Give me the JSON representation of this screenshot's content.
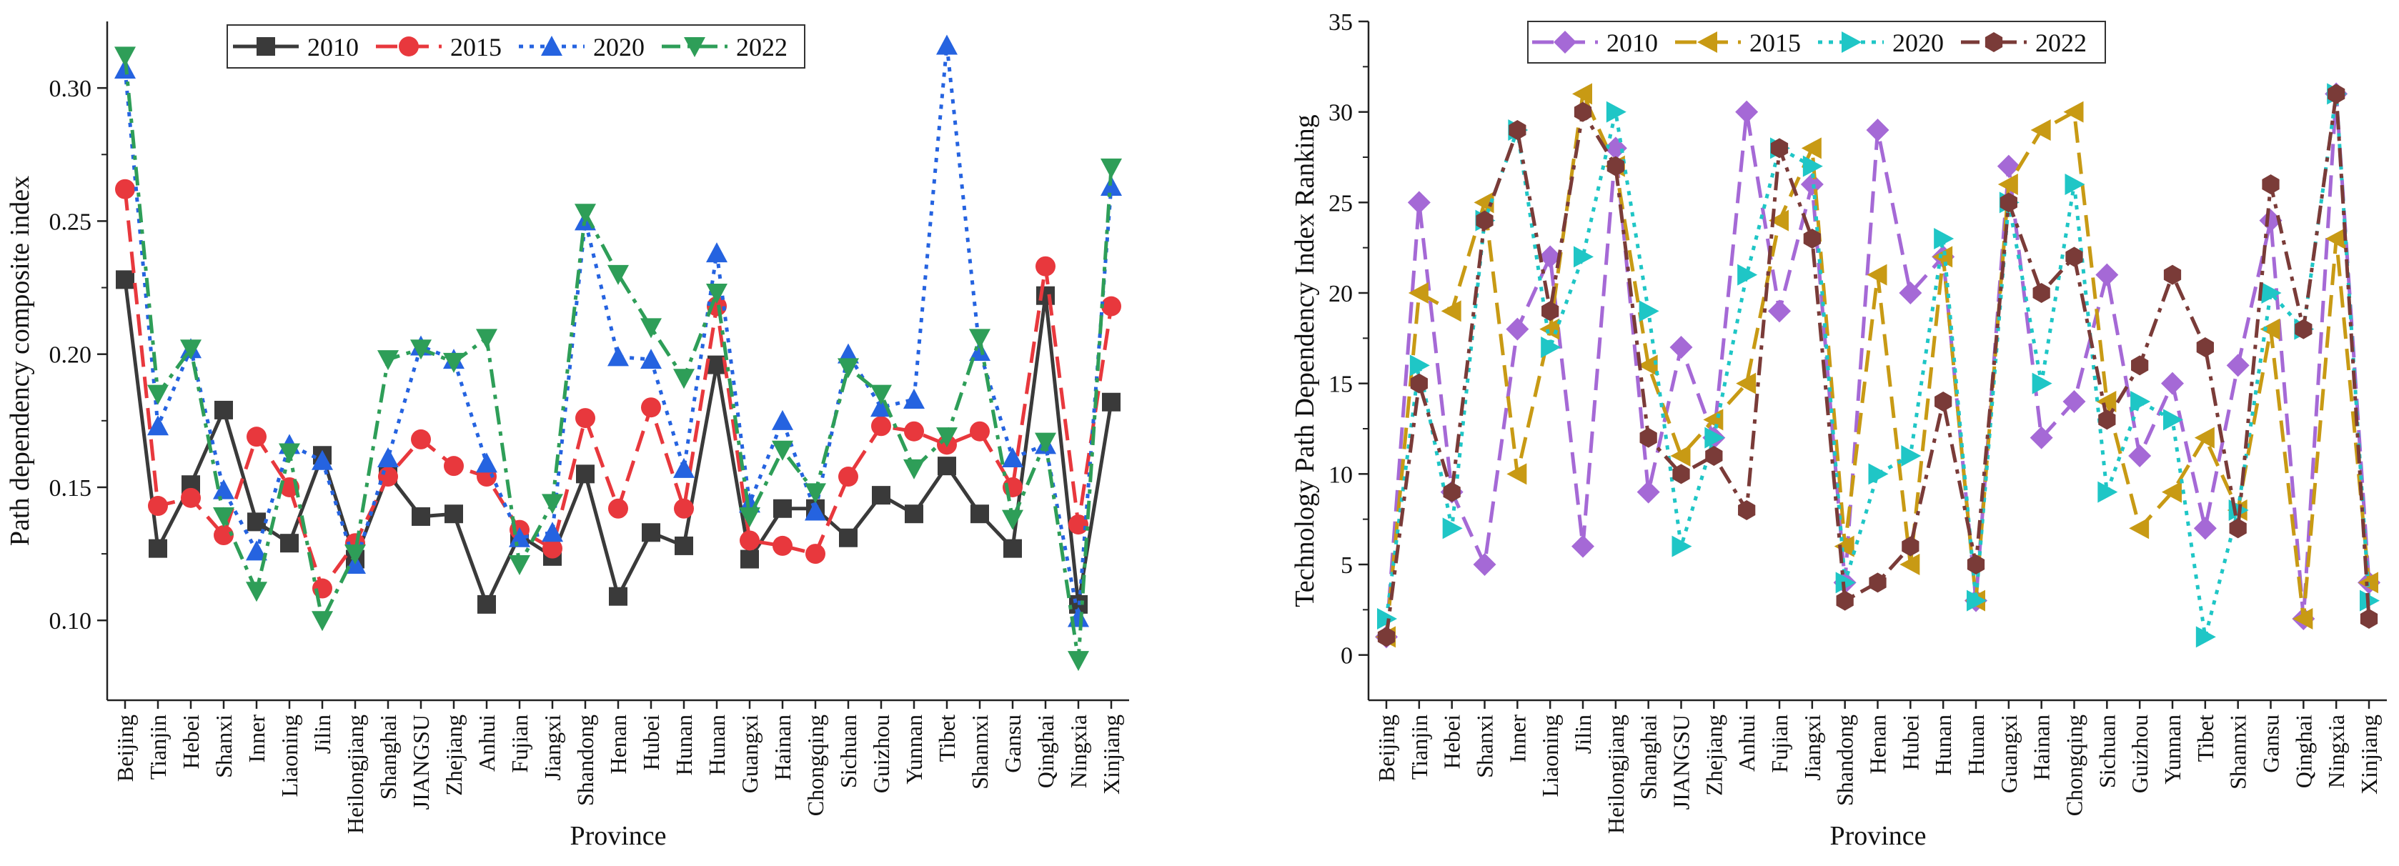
{
  "chart_data": [
    {
      "type": "line",
      "title": "",
      "xlabel": "Province",
      "ylabel": "Path dependency composite index",
      "ylim": [
        0.07,
        0.325
      ],
      "yticks": [
        0.1,
        0.15,
        0.2,
        0.25,
        0.3
      ],
      "ytick_labels": [
        "0.10",
        "0.15",
        "0.20",
        "0.25",
        "0.30"
      ],
      "legend_position": "top",
      "categories": [
        "Beijing",
        "Tianjin",
        "Hebei",
        "Shanxi",
        "Inner",
        "Liaoning",
        "Jilin",
        "Heilongjiang",
        "Shanghai",
        "JIANGSU",
        "Zhejiang",
        "Anhui",
        "Fujian",
        "Jiangxi",
        "Shandong",
        "Henan",
        "Hubei",
        "Hunan",
        "Hunan",
        "Guangxi",
        "Hainan",
        "Chongqing",
        "Sichuan",
        "Guizhou",
        "Yunnan",
        "Tibet",
        "Shannxi",
        "Gansu",
        "Qinghai",
        "Ningxia",
        "Xinjiang"
      ],
      "series": [
        {
          "name": "2010",
          "color": "#3a3a3a",
          "marker": "square",
          "dash": "solid",
          "values": [
            0.228,
            0.127,
            0.151,
            0.179,
            0.137,
            0.129,
            0.162,
            0.123,
            0.155,
            0.139,
            0.14,
            0.106,
            0.132,
            0.124,
            0.155,
            0.109,
            0.133,
            0.128,
            0.196,
            0.123,
            0.142,
            0.142,
            0.131,
            0.147,
            0.14,
            0.158,
            0.14,
            0.127,
            0.222,
            0.106,
            0.182
          ]
        },
        {
          "name": "2015",
          "color": "#e8383d",
          "marker": "circle",
          "dash": "dashed",
          "values": [
            0.262,
            0.143,
            0.146,
            0.132,
            0.169,
            0.15,
            0.112,
            0.129,
            0.154,
            0.168,
            0.158,
            0.154,
            0.134,
            0.127,
            0.176,
            0.142,
            0.18,
            0.142,
            0.218,
            0.13,
            0.128,
            0.125,
            0.154,
            0.173,
            0.171,
            0.166,
            0.171,
            0.15,
            0.233,
            0.136,
            0.218
          ]
        },
        {
          "name": "2020",
          "color": "#2563e0",
          "marker": "triangle-up",
          "dash": "dotted",
          "values": [
            0.307,
            0.173,
            0.202,
            0.149,
            0.126,
            0.166,
            0.16,
            0.121,
            0.161,
            0.203,
            0.198,
            0.159,
            0.131,
            0.133,
            0.25,
            0.199,
            0.198,
            0.157,
            0.238,
            0.144,
            0.175,
            0.141,
            0.2,
            0.18,
            0.183,
            0.316,
            0.201,
            0.161,
            0.166,
            0.101,
            0.263
          ]
        },
        {
          "name": "2022",
          "color": "#2e9e58",
          "marker": "triangle-down",
          "dash": "dashdot",
          "values": [
            0.312,
            0.185,
            0.202,
            0.139,
            0.111,
            0.163,
            0.1,
            0.125,
            0.198,
            0.202,
            0.197,
            0.206,
            0.121,
            0.144,
            0.253,
            0.23,
            0.21,
            0.191,
            0.223,
            0.139,
            0.164,
            0.148,
            0.195,
            0.185,
            0.157,
            0.169,
            0.206,
            0.138,
            0.167,
            0.085,
            0.27
          ]
        }
      ]
    },
    {
      "type": "line",
      "title": "",
      "xlabel": "Province",
      "ylabel": "Technology Path Dependency Index Ranking",
      "ylim": [
        -2.5,
        35
      ],
      "yticks": [
        0,
        5,
        10,
        15,
        20,
        25,
        30,
        35
      ],
      "ytick_labels": [
        "0",
        "5",
        "10",
        "15",
        "20",
        "25",
        "30",
        "35"
      ],
      "legend_position": "top",
      "categories": [
        "Beijing",
        "Tianjin",
        "Hebei",
        "Shanxi",
        "Inner",
        "Liaoning",
        "Jilin",
        "Heilongjiang",
        "Shanghai",
        "JIANGSU",
        "Zhejiang",
        "Anhui",
        "Fujian",
        "Jiangxi",
        "Shandong",
        "Henan",
        "Hubei",
        "Hunan",
        "Hunan",
        "Guangxi",
        "Hainan",
        "Chongqing",
        "Sichuan",
        "Guizhou",
        "Yunnan",
        "Tibet",
        "Shannxi",
        "Gansu",
        "Qinghai",
        "Ningxia",
        "Xinjiang"
      ],
      "series": [
        {
          "name": "2010",
          "color": "#a569d6",
          "marker": "diamond",
          "dash": "dashed",
          "values": [
            1,
            25,
            9,
            5,
            18,
            22,
            6,
            28,
            9,
            17,
            12,
            30,
            19,
            26,
            4,
            29,
            20,
            22,
            3,
            27,
            12,
            14,
            21,
            11,
            15,
            7,
            16,
            24,
            2,
            31,
            4
          ]
        },
        {
          "name": "2015",
          "color": "#c89a14",
          "marker": "triangle-left",
          "dash": "dashed",
          "values": [
            1,
            20,
            19,
            25,
            10,
            18,
            31,
            27,
            16,
            11,
            13,
            15,
            24,
            28,
            6,
            21,
            5,
            22,
            3,
            26,
            29,
            30,
            14,
            7,
            9,
            12,
            8,
            18,
            2,
            23,
            4
          ]
        },
        {
          "name": "2020",
          "color": "#1fc6c6",
          "marker": "triangle-right",
          "dash": "dotted",
          "values": [
            2,
            16,
            7,
            24,
            29,
            17,
            22,
            30,
            19,
            6,
            12,
            21,
            28,
            27,
            4,
            10,
            11,
            23,
            3,
            25,
            15,
            26,
            9,
            14,
            13,
            1,
            8,
            20,
            18,
            31,
            3
          ]
        },
        {
          "name": "2022",
          "color": "#7a3b38",
          "marker": "hexagon",
          "dash": "dashdot",
          "values": [
            1,
            15,
            9,
            24,
            29,
            19,
            30,
            27,
            12,
            10,
            11,
            8,
            28,
            23,
            3,
            4,
            6,
            14,
            5,
            25,
            20,
            22,
            13,
            16,
            21,
            17,
            7,
            26,
            18,
            31,
            2
          ]
        }
      ]
    }
  ]
}
